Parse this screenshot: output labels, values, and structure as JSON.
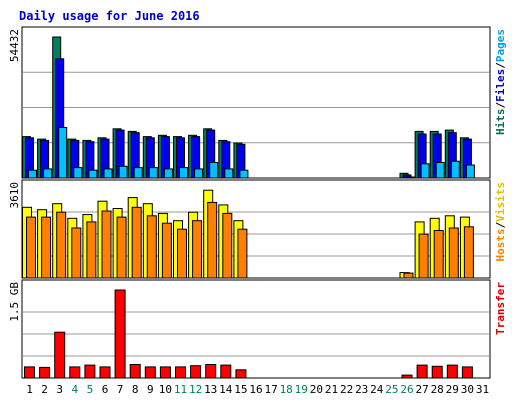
{
  "chart_data": {
    "type": "bar",
    "title": "Daily usage for June 2016",
    "categories": [
      "1",
      "2",
      "3",
      "4",
      "5",
      "6",
      "7",
      "8",
      "9",
      "10",
      "11",
      "12",
      "13",
      "14",
      "15",
      "16",
      "17",
      "18",
      "19",
      "20",
      "21",
      "22",
      "23",
      "24",
      "25",
      "26",
      "27",
      "28",
      "29",
      "30",
      "31"
    ],
    "weekend_days": [
      "4",
      "5",
      "11",
      "12",
      "18",
      "19",
      "25",
      "26"
    ],
    "panels": [
      {
        "id": "hits-files-pages",
        "ymax_label": "54432",
        "ymax": 54432,
        "side_label_parts": [
          {
            "text": "Hits",
            "color": "#006f54"
          },
          {
            "text": "/",
            "color": "#000000"
          },
          {
            "text": "Files",
            "color": "#0000cc"
          },
          {
            "text": "/",
            "color": "#000000"
          },
          {
            "text": "Pages",
            "color": "#00a0e0"
          }
        ],
        "series": [
          {
            "name": "Hits",
            "color": "#008060",
            "values": [
              16000,
              15000,
              54432,
              15000,
              14500,
              15500,
              19000,
              18000,
              16000,
              16500,
              16000,
              16500,
              19000,
              14500,
              13500,
              0,
              0,
              0,
              0,
              0,
              0,
              0,
              0,
              0,
              0,
              1800,
              18000,
              18000,
              18500,
              15500,
              0
            ]
          },
          {
            "name": "Files",
            "color": "#0000ee",
            "values": [
              15500,
              14500,
              46000,
              14500,
              14000,
              15000,
              18500,
              17500,
              15500,
              16000,
              15500,
              16000,
              18500,
              14000,
              13000,
              0,
              0,
              0,
              0,
              0,
              0,
              0,
              0,
              0,
              0,
              1200,
              17000,
              17000,
              17500,
              15000,
              0
            ]
          },
          {
            "name": "Pages",
            "color": "#00c0ff",
            "values": [
              3000,
              3500,
              19500,
              4000,
              3000,
              3500,
              4500,
              4000,
              4000,
              3500,
              4000,
              3500,
              6000,
              3500,
              3000,
              0,
              0,
              0,
              0,
              0,
              0,
              0,
              0,
              0,
              0,
              200,
              5500,
              6000,
              6500,
              5000,
              0
            ]
          }
        ]
      },
      {
        "id": "visits-hosts",
        "ymax_label": "3610",
        "ymax": 3610,
        "side_label_parts": [
          {
            "text": "Hosts",
            "color": "#ff8000"
          },
          {
            "text": "/",
            "color": "#000000"
          },
          {
            "text": "Visits",
            "color": "#e0c000"
          }
        ],
        "series": [
          {
            "name": "Visits",
            "color": "#ffff00",
            "values": [
              2900,
              2800,
              3050,
              2450,
              2600,
              3150,
              2850,
              3300,
              3050,
              2650,
              2350,
              2700,
              3600,
              3000,
              2350,
              0,
              0,
              0,
              0,
              0,
              0,
              0,
              0,
              0,
              0,
              220,
              2300,
              2450,
              2550,
              2500,
              0
            ]
          },
          {
            "name": "Hosts",
            "color": "#ff8000",
            "values": [
              2500,
              2500,
              2700,
              2050,
              2300,
              2750,
              2500,
              2900,
              2550,
              2250,
              2000,
              2350,
              3100,
              2650,
              2000,
              0,
              0,
              0,
              0,
              0,
              0,
              0,
              0,
              0,
              0,
              200,
              1800,
              1950,
              2050,
              2100,
              0
            ]
          }
        ]
      },
      {
        "id": "transfer",
        "ymax_label": "1.5 GB",
        "ymax": 1.5,
        "unit": "GB",
        "side_label_parts": [
          {
            "text": "Transfer",
            "color": "#e00000"
          }
        ],
        "series": [
          {
            "name": "Transfer",
            "color": "#ff0000",
            "values": [
              0.19,
              0.18,
              0.78,
              0.19,
              0.22,
              0.19,
              1.5,
              0.23,
              0.19,
              0.19,
              0.19,
              0.21,
              0.23,
              0.22,
              0.14,
              0,
              0,
              0,
              0,
              0,
              0,
              0,
              0,
              0,
              0,
              0.05,
              0.22,
              0.2,
              0.22,
              0.19,
              0
            ]
          }
        ]
      }
    ]
  }
}
